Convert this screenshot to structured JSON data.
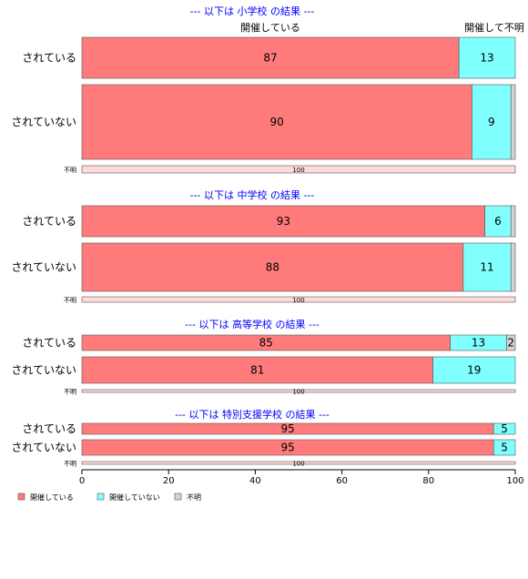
{
  "top_labels": {
    "held": "開催している",
    "not_held_unknown": "開催して不明"
  },
  "chart_data": {
    "type": "bar",
    "orientation": "horizontal",
    "stacked": true,
    "xlim": [
      0,
      100
    ],
    "xticks": [
      0,
      20,
      40,
      60,
      80,
      100
    ],
    "colors": {
      "held": "#ff7b7b",
      "not_held": "#80ffff",
      "unknown": "#d3d3d3",
      "section_title": "#0000ff"
    },
    "legend": {
      "placement": "bottom-left",
      "items": [
        {
          "key": "held",
          "label": "開催している"
        },
        {
          "key": "not_held",
          "label": "開催していない"
        },
        {
          "key": "unknown",
          "label": "不明"
        }
      ]
    },
    "panels": [
      {
        "title": "--- 以下は 小学校 の結果 ---",
        "rows": [
          {
            "label": "されている",
            "held": 87,
            "not_held": 13,
            "unknown": 0
          },
          {
            "label": "されていない",
            "held": 90,
            "not_held": 9,
            "unknown": 1
          },
          {
            "label": "不明",
            "held": 100,
            "not_held": 0,
            "unknown": 0
          }
        ]
      },
      {
        "title": "--- 以下は 中学校 の結果 ---",
        "rows": [
          {
            "label": "されている",
            "held": 93,
            "not_held": 6,
            "unknown": 1
          },
          {
            "label": "されていない",
            "held": 88,
            "not_held": 11,
            "unknown": 1
          },
          {
            "label": "不明",
            "held": 100,
            "not_held": 0,
            "unknown": 0
          }
        ]
      },
      {
        "title": "--- 以下は 高等学校 の結果 ---",
        "rows": [
          {
            "label": "されている",
            "held": 85,
            "not_held": 13,
            "unknown": 2
          },
          {
            "label": "されていない",
            "held": 81,
            "not_held": 19,
            "unknown": 0
          },
          {
            "label": "不明",
            "held": 100,
            "not_held": 0,
            "unknown": 0
          }
        ]
      },
      {
        "title": "--- 以下は 特別支援学校 の結果 ---",
        "rows": [
          {
            "label": "されている",
            "held": 95,
            "not_held": 5,
            "unknown": 0
          },
          {
            "label": "されていない",
            "held": 95,
            "not_held": 5,
            "unknown": 0
          },
          {
            "label": "不明",
            "held": 100,
            "not_held": 0,
            "unknown": 0
          }
        ]
      }
    ]
  }
}
